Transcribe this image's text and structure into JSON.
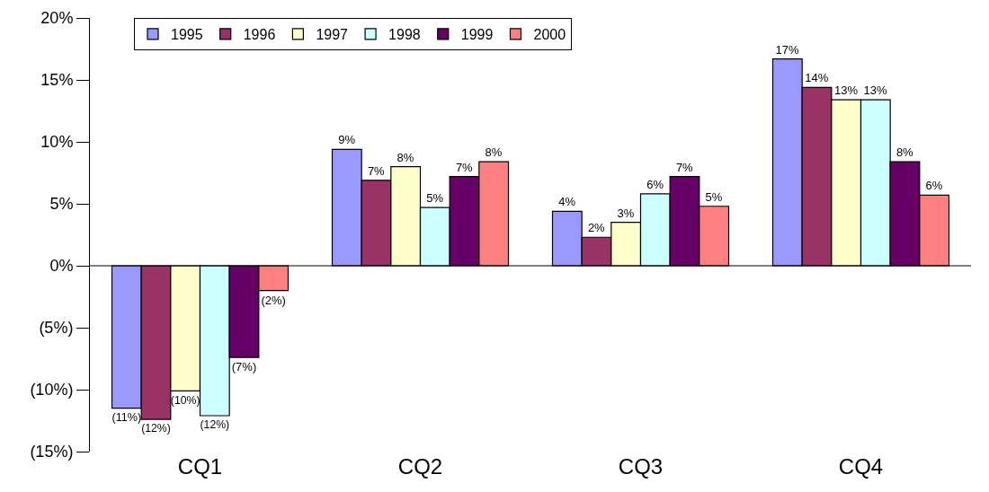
{
  "chart_data": {
    "type": "bar",
    "categories": [
      "CQ1",
      "CQ2",
      "CQ3",
      "CQ4"
    ],
    "series": [
      {
        "name": "1995",
        "color": "#9999ff",
        "values": [
          -11.5,
          9.4,
          4.4,
          16.7
        ],
        "value_labels": [
          "(11%)",
          "9%",
          "4%",
          "17%"
        ]
      },
      {
        "name": "1996",
        "color": "#993366",
        "values": [
          -12.4,
          6.9,
          2.3,
          14.4
        ],
        "value_labels": [
          "(12%)",
          "7%",
          "2%",
          "14%"
        ]
      },
      {
        "name": "1997",
        "color": "#ffffcc",
        "values": [
          -10.1,
          8.0,
          3.5,
          13.4
        ],
        "value_labels": [
          "(10%)",
          "8%",
          "3%",
          "13%"
        ]
      },
      {
        "name": "1998",
        "color": "#ccffff",
        "values": [
          -12.1,
          4.7,
          5.8,
          13.4
        ],
        "value_labels": [
          "(12%)",
          "5%",
          "6%",
          "13%"
        ]
      },
      {
        "name": "1999",
        "color": "#660066",
        "values": [
          -7.4,
          7.2,
          7.2,
          8.4
        ],
        "value_labels": [
          "(7%)",
          "7%",
          "7%",
          "8%"
        ]
      },
      {
        "name": "2000",
        "color": "#ff8080",
        "values": [
          -2.0,
          8.4,
          4.8,
          5.7
        ],
        "value_labels": [
          "(2%)",
          "8%",
          "5%",
          "6%"
        ]
      }
    ],
    "ylim": [
      -15,
      20
    ],
    "yticks": [
      {
        "value": -15,
        "label": "(15%)"
      },
      {
        "value": -10,
        "label": "(10%)"
      },
      {
        "value": -5,
        "label": "(5%)"
      },
      {
        "value": 0,
        "label": "0%"
      },
      {
        "value": 5,
        "label": "5%"
      },
      {
        "value": 10,
        "label": "10%"
      },
      {
        "value": 15,
        "label": "15%"
      },
      {
        "value": 20,
        "label": "20%"
      }
    ],
    "legend": "top"
  }
}
